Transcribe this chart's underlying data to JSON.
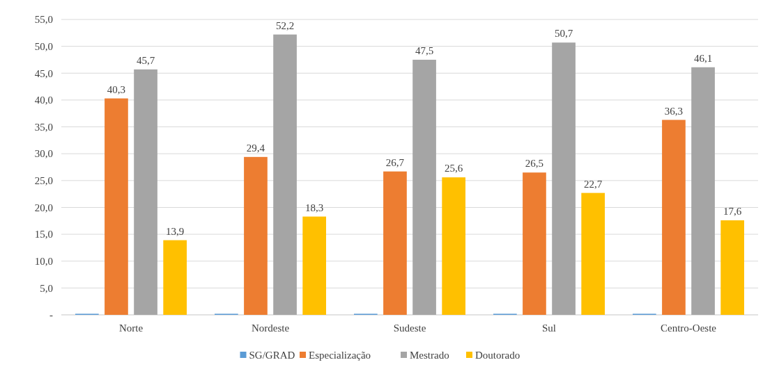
{
  "chart_data": {
    "type": "bar",
    "categories": [
      "Norte",
      "Nordeste",
      "Sudeste",
      "Sul",
      "Centro-Oeste"
    ],
    "series": [
      {
        "name": "SG/GRAD",
        "color": "#5b9bd5",
        "values": [
          0.2,
          0.2,
          0.2,
          0.2,
          0.2
        ],
        "value_labels": [
          null,
          null,
          null,
          null,
          null
        ]
      },
      {
        "name": "Especialização",
        "color": "#ed7d31",
        "values": [
          40.3,
          29.4,
          26.7,
          26.5,
          36.3
        ],
        "value_labels": [
          "40,3",
          "29,4",
          "26,7",
          "26,5",
          "36,3"
        ]
      },
      {
        "name": "Mestrado",
        "color": "#a5a5a5",
        "values": [
          45.7,
          52.2,
          47.5,
          50.7,
          46.1
        ],
        "value_labels": [
          "45,7",
          "52,2",
          "47,5",
          "50,7",
          "46,1"
        ]
      },
      {
        "name": "Doutorado",
        "color": "#ffc000",
        "values": [
          13.9,
          18.3,
          25.6,
          22.7,
          17.6
        ],
        "value_labels": [
          "13,9",
          "18,3",
          "25,6",
          "22,7",
          "17,6"
        ]
      }
    ],
    "ylim": [
      0,
      55
    ],
    "yticks": [
      {
        "value": 0,
        "label": "-"
      },
      {
        "value": 5,
        "label": "5,0"
      },
      {
        "value": 10,
        "label": "10,0"
      },
      {
        "value": 15,
        "label": "15,0"
      },
      {
        "value": 20,
        "label": "20,0"
      },
      {
        "value": 25,
        "label": "25,0"
      },
      {
        "value": 30,
        "label": "30,0"
      },
      {
        "value": 35,
        "label": "35,0"
      },
      {
        "value": 40,
        "label": "40,0"
      },
      {
        "value": 45,
        "label": "45,0"
      },
      {
        "value": 50,
        "label": "50,0"
      },
      {
        "value": 55,
        "label": "55,0"
      }
    ],
    "grid": "y",
    "legend": "bottom"
  }
}
